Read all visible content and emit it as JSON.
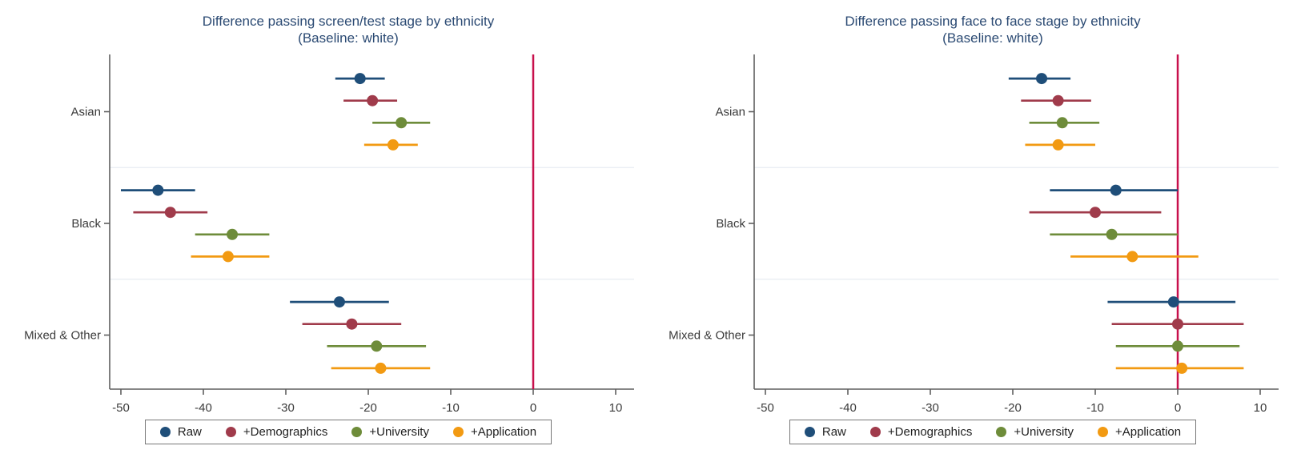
{
  "figure": {
    "background": "#ffffff",
    "colors": {
      "title_text": "#2b4a73",
      "axis_line": "#5f5f5f",
      "tick_text": "#3b3b3b",
      "category_text": "#3b3b3b",
      "group_separator": "#e8ebf2",
      "reference_line": "#c8104c",
      "legend_border": "#777777"
    }
  },
  "chart_data": [
    {
      "type": "scatter",
      "subtype": "coefficient-plot-with-95ci",
      "title": "Difference passing screen/test stage by ethnicity",
      "subtitle": "(Baseline: white)",
      "xlabel": "",
      "ylabel": "",
      "xlim": [
        -52,
        12
      ],
      "x_ticks": [
        -50,
        -40,
        -30,
        -20,
        -10,
        0,
        10
      ],
      "ref_line_x": 0,
      "grid": "horizontal group separators only",
      "legend_position": "bottom-center",
      "categories": [
        "Asian",
        "Black",
        "Mixed & Other"
      ],
      "series": [
        {
          "name": "Raw",
          "color": "#1f4e79",
          "values": [
            -21.0,
            -45.5,
            -23.5
          ],
          "ci_low": [
            -24.0,
            -50.0,
            -29.5
          ],
          "ci_high": [
            -18.0,
            -41.0,
            -17.5
          ]
        },
        {
          "name": "+Demographics",
          "color": "#a03b4b",
          "values": [
            -19.5,
            -44.0,
            -22.0
          ],
          "ci_low": [
            -23.0,
            -48.5,
            -28.0
          ],
          "ci_high": [
            -16.5,
            -39.5,
            -16.0
          ]
        },
        {
          "name": "+University",
          "color": "#6e8c3a",
          "values": [
            -16.0,
            -36.5,
            -19.0
          ],
          "ci_low": [
            -19.5,
            -41.0,
            -25.0
          ],
          "ci_high": [
            -12.5,
            -32.0,
            -13.0
          ]
        },
        {
          "name": "+Application",
          "color": "#f29a12",
          "values": [
            -17.0,
            -37.0,
            -18.5
          ],
          "ci_low": [
            -20.5,
            -41.5,
            -24.5
          ],
          "ci_high": [
            -14.0,
            -32.0,
            -12.5
          ]
        }
      ]
    },
    {
      "type": "scatter",
      "subtype": "coefficient-plot-with-95ci",
      "title": "Difference passing face to face stage by ethnicity",
      "subtitle": "(Baseline: white)",
      "xlabel": "",
      "ylabel": "",
      "xlim": [
        -52,
        12
      ],
      "x_ticks": [
        -50,
        -40,
        -30,
        -20,
        -10,
        0,
        10
      ],
      "ref_line_x": 0,
      "grid": "horizontal group separators only",
      "legend_position": "bottom-center",
      "categories": [
        "Asian",
        "Black",
        "Mixed & Other"
      ],
      "series": [
        {
          "name": "Raw",
          "color": "#1f4e79",
          "values": [
            -16.5,
            -7.5,
            -0.5
          ],
          "ci_low": [
            -20.5,
            -15.5,
            -8.5
          ],
          "ci_high": [
            -13.0,
            0.0,
            7.0
          ]
        },
        {
          "name": "+Demographics",
          "color": "#a03b4b",
          "values": [
            -14.5,
            -10.0,
            0.0
          ],
          "ci_low": [
            -19.0,
            -18.0,
            -8.0
          ],
          "ci_high": [
            -10.5,
            -2.0,
            8.0
          ]
        },
        {
          "name": "+University",
          "color": "#6e8c3a",
          "values": [
            -14.0,
            -8.0,
            0.0
          ],
          "ci_low": [
            -18.0,
            -15.5,
            -7.5
          ],
          "ci_high": [
            -9.5,
            0.0,
            7.5
          ]
        },
        {
          "name": "+Application",
          "color": "#f29a12",
          "values": [
            -14.5,
            -5.5,
            0.5
          ],
          "ci_low": [
            -18.5,
            -13.0,
            -7.5
          ],
          "ci_high": [
            -10.0,
            2.5,
            8.0
          ]
        }
      ]
    }
  ]
}
